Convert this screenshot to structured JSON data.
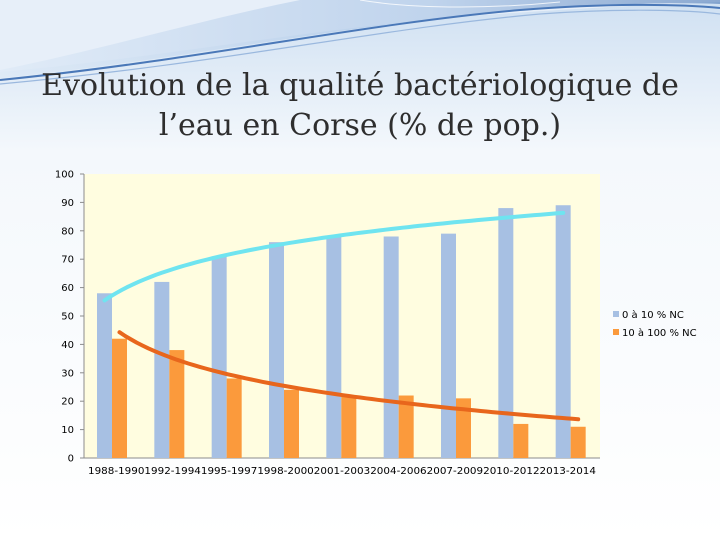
{
  "slide": {
    "title": "Evolution de la qualité bactériologique de l’eau en Corse (% de pop.)"
  },
  "colors": {
    "plot_background": "#fffde0",
    "series_1": "#a7c0e3",
    "series_2": "#fb9a3c",
    "trend_1": "#6fe4f0",
    "trend_2": "#e8661c",
    "header_wave": "#4a78b8"
  },
  "chart_data": {
    "type": "bar",
    "categories": [
      "1988-1990",
      "1992-1994",
      "1995-1997",
      "1998-2000",
      "2001-2003",
      "2004-2006",
      "2007-2009",
      "2010-2012",
      "2013-2014"
    ],
    "series": [
      {
        "name": "0 à 10 % NC",
        "values": [
          58,
          62,
          71,
          76,
          78,
          78,
          79,
          88,
          89
        ],
        "trendline": "logarithmic"
      },
      {
        "name": "10 à 100 % NC",
        "values": [
          42,
          38,
          28,
          24,
          22,
          22,
          21,
          12,
          11
        ],
        "trendline": "logarithmic"
      }
    ],
    "ylim": [
      0,
      100
    ],
    "yticks": [
      0,
      10,
      20,
      30,
      40,
      50,
      60,
      70,
      80,
      90,
      100
    ],
    "grid": false,
    "legend_position": "right"
  }
}
